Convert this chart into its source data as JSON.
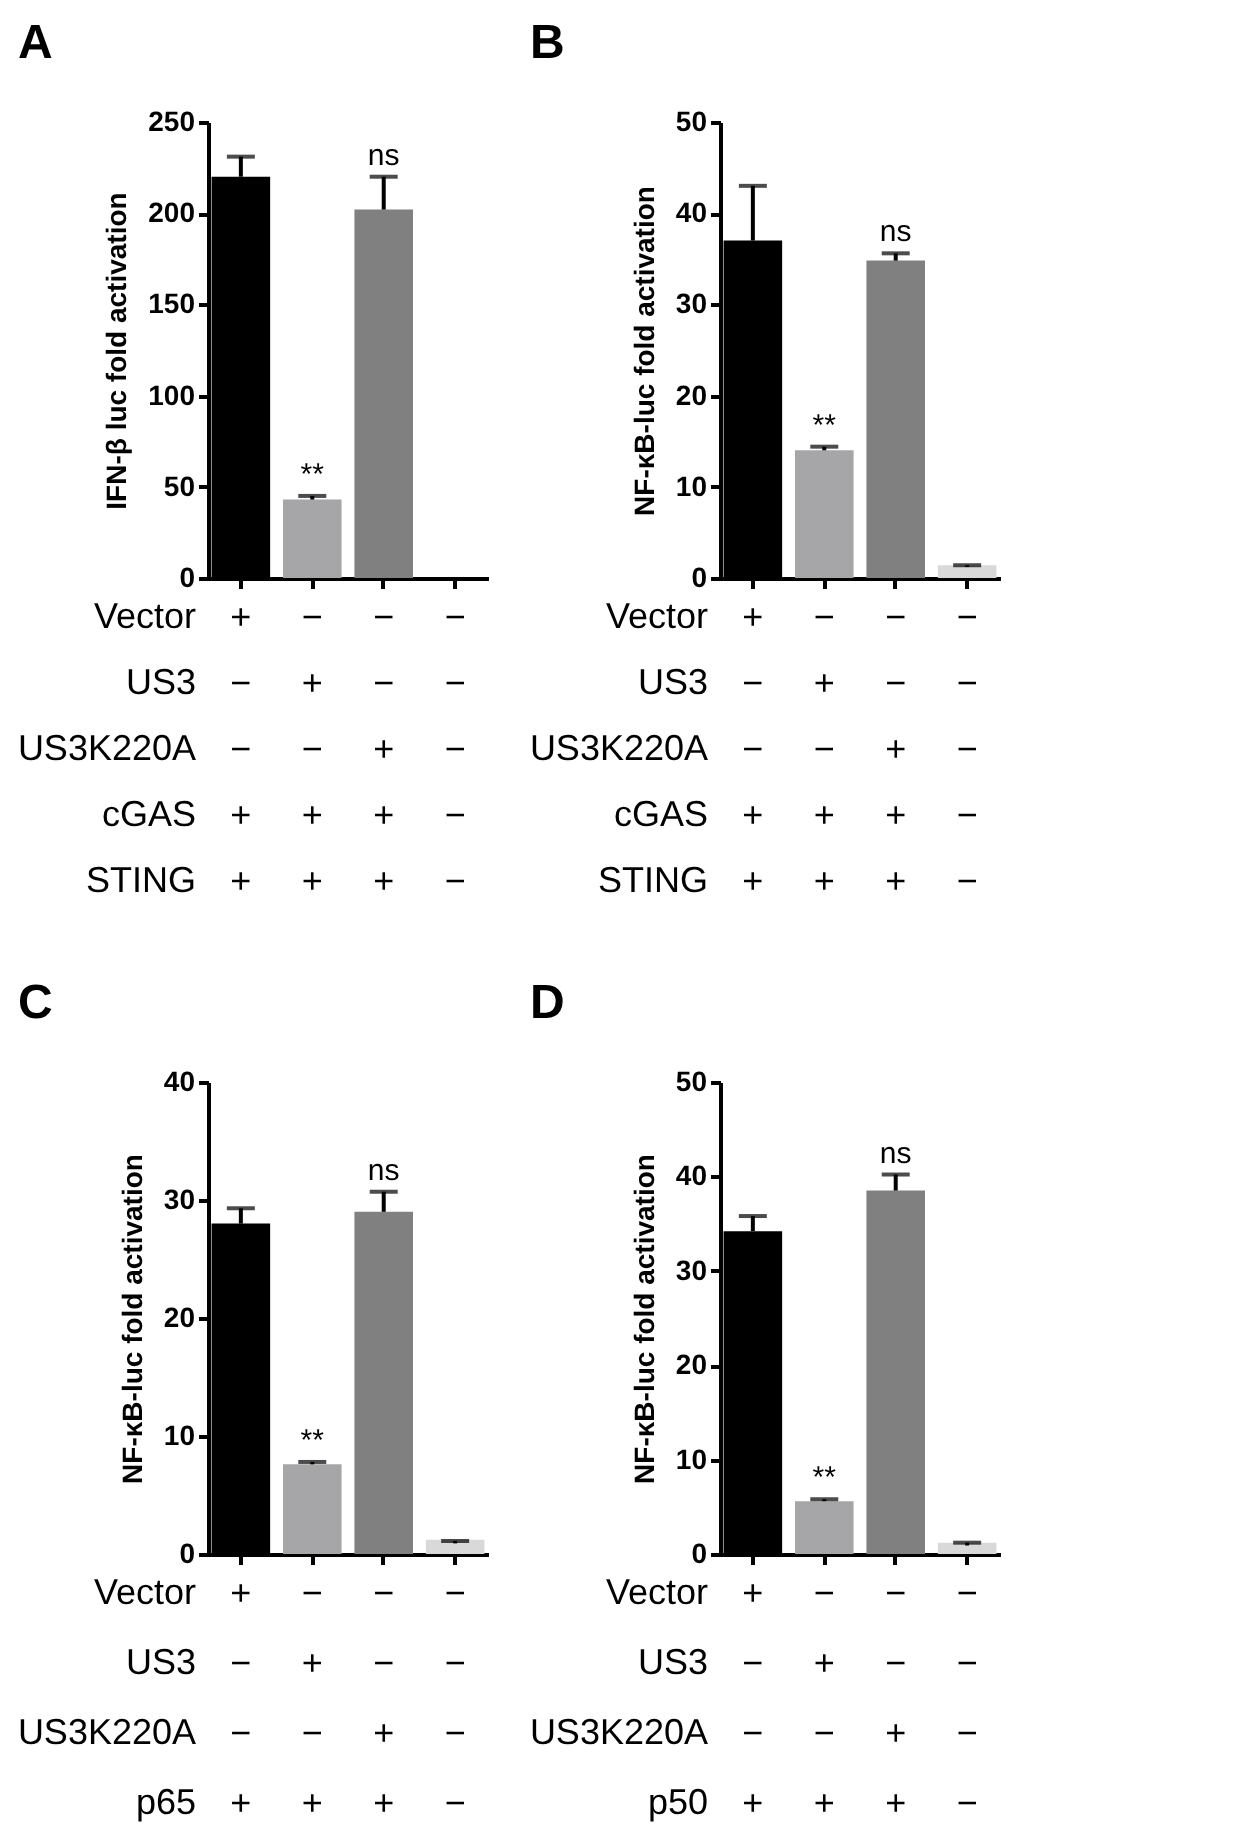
{
  "chart_data": [
    {
      "type": "bar",
      "title": "A",
      "ylabel": "IFN-β luc fold activation",
      "categories": [
        "+\n−\n−\n+\n+",
        "−\n+\n−\n+\n+",
        "−\n−\n+\n+\n+",
        "−\n−\n−\n−\n−"
      ],
      "values": [
        220,
        43,
        202,
        null
      ],
      "errors": [
        [
          220,
          231
        ],
        [
          43,
          45
        ],
        [
          202,
          220
        ],
        null
      ],
      "colors": [
        "#000000",
        "#a6a6a8",
        "#808080",
        "#d9d9d9"
      ],
      "ylim": [
        0,
        250
      ],
      "yticks": [
        0,
        50,
        100,
        150,
        200,
        250
      ],
      "annotations": [
        "Vector",
        "US3",
        "US3K220A",
        "cGAS",
        "STING",
        {
          "text": "**",
          "x": "−\n+\n−\n+\n+",
          "y": 45
        },
        {
          "text": "ns",
          "x": "−\n−\n+\n+\n+",
          "y": 220
        }
      ]
    },
    {
      "type": "bar",
      "title": "B",
      "ylabel": "NF-κB-luc fold activation",
      "categories": [
        "+\n−\n−\n+\n+",
        "−\n+\n−\n+\n+",
        "−\n−\n+\n+\n+",
        "−\n−\n−\n−\n−"
      ],
      "values": [
        37,
        14,
        34.8,
        1.4
      ],
      "errors": [
        [
          37,
          43
        ],
        [
          14,
          14.4
        ],
        [
          34.8,
          35.6
        ],
        [
          1.2,
          1.4
        ]
      ],
      "colors": [
        "#000000",
        "#a6a6a8",
        "#808080",
        "#d9d9d9"
      ],
      "ylim": [
        0,
        50
      ],
      "yticks": [
        0,
        10,
        20,
        30,
        40,
        50
      ],
      "annotations": [
        "Vector",
        "US3",
        "US3K220A",
        "cGAS",
        "STING",
        {
          "text": "**",
          "x": "−\n+\n−\n+\n+",
          "y": 14.4
        },
        {
          "text": "ns",
          "x": "−\n−\n+\n+\n+",
          "y": 35.6
        }
      ]
    },
    {
      "type": "bar",
      "title": "C",
      "ylabel": "NF-κB-luc fold activation",
      "categories": [
        "+\n−\n−\n+",
        "−\n+\n−\n+",
        "−\n−\n+\n+",
        "−\n−\n−\n−"
      ],
      "values": [
        28,
        7.6,
        29,
        1.2
      ],
      "errors": [
        [
          28,
          29.3
        ],
        [
          7.6,
          7.8
        ],
        [
          29,
          30.7
        ],
        [
          0.9,
          1.1
        ]
      ],
      "colors": [
        "#000000",
        "#a6a6a8",
        "#808080",
        "#d9d9d9"
      ],
      "ylim": [
        0,
        40
      ],
      "yticks": [
        0,
        10,
        20,
        30,
        40
      ],
      "annotations": [
        "Vector",
        "US3",
        "US3K220A",
        "p65",
        {
          "text": "**",
          "x": "−\n+\n−\n+",
          "y": 7.8
        },
        {
          "text": "ns",
          "x": "−\n−\n+\n+",
          "y": 30.7
        }
      ]
    },
    {
      "type": "bar",
      "title": "D",
      "ylabel": "NF-κB-luc fold activation",
      "categories": [
        "+\n−\n−\n+",
        "−\n+\n−\n+",
        "−\n−\n+\n+",
        "−\n−\n−\n−"
      ],
      "values": [
        34.2,
        5.6,
        38.5,
        1.2
      ],
      "errors": [
        [
          34.2,
          35.8
        ],
        [
          5.6,
          5.8
        ],
        [
          38.5,
          40.2
        ],
        [
          0.9,
          1.2
        ]
      ],
      "colors": [
        "#000000",
        "#a6a6a8",
        "#808080",
        "#d9d9d9"
      ],
      "ylim": [
        0,
        50
      ],
      "yticks": [
        0,
        10,
        20,
        30,
        40,
        50
      ],
      "annotations": [
        "Vector",
        "US3",
        "US3K220A",
        "p50",
        {
          "text": "**",
          "x": "−\n+\n−\n+",
          "y": 5.8
        },
        {
          "text": "ns",
          "x": "−\n−\n+\n+",
          "y": 40.2
        }
      ]
    }
  ]
}
